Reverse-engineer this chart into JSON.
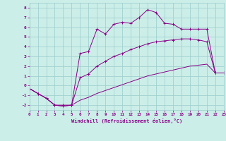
{
  "xlabel": "Windchill (Refroidissement éolien,°C)",
  "bg_color": "#cceee8",
  "grid_color": "#99cccc",
  "line_color": "#880088",
  "xmin": 0,
  "xmax": 23,
  "ymin": -2.5,
  "ymax": 8.5,
  "yticks": [
    -2,
    -1,
    0,
    1,
    2,
    3,
    4,
    5,
    6,
    7,
    8
  ],
  "xticks": [
    0,
    1,
    2,
    3,
    4,
    5,
    6,
    7,
    8,
    9,
    10,
    11,
    12,
    13,
    14,
    15,
    16,
    17,
    18,
    19,
    20,
    21,
    22,
    23
  ],
  "line1_x": [
    0,
    1,
    2,
    3,
    4,
    5,
    6,
    7,
    8,
    9,
    10,
    11,
    12,
    13,
    14,
    15,
    16,
    17,
    18,
    19,
    20,
    21,
    22,
    23
  ],
  "line1_y": [
    -0.3,
    -0.8,
    -1.3,
    -2.0,
    -2.0,
    -2.0,
    3.3,
    3.5,
    5.8,
    5.3,
    6.3,
    6.5,
    6.4,
    7.0,
    7.8,
    7.5,
    6.4,
    6.3,
    5.8,
    5.8,
    5.8,
    5.8,
    1.3,
    1.3
  ],
  "line2_x": [
    0,
    1,
    2,
    3,
    4,
    5,
    6,
    7,
    8,
    9,
    10,
    11,
    12,
    13,
    14,
    15,
    16,
    17,
    18,
    19,
    20,
    21,
    22,
    23
  ],
  "line2_y": [
    -0.3,
    -0.8,
    -1.3,
    -2.0,
    -2.1,
    -2.0,
    0.8,
    1.2,
    2.0,
    2.5,
    3.0,
    3.3,
    3.7,
    4.0,
    4.3,
    4.5,
    4.6,
    4.7,
    4.8,
    4.8,
    4.7,
    4.5,
    1.3,
    1.3
  ],
  "line3_x": [
    0,
    1,
    2,
    3,
    4,
    5,
    6,
    7,
    8,
    9,
    10,
    11,
    12,
    13,
    14,
    15,
    16,
    17,
    18,
    19,
    20,
    21,
    22,
    23
  ],
  "line3_y": [
    -0.3,
    -0.8,
    -1.3,
    -2.0,
    -2.1,
    -2.0,
    -1.5,
    -1.2,
    -0.8,
    -0.5,
    -0.2,
    0.1,
    0.4,
    0.7,
    1.0,
    1.2,
    1.4,
    1.6,
    1.8,
    2.0,
    2.1,
    2.2,
    1.3,
    1.3
  ],
  "marker1_x": [
    5,
    6,
    7,
    8,
    9,
    10,
    11,
    12,
    13,
    14,
    15,
    16,
    19,
    20,
    21,
    22,
    23
  ],
  "marker2_x": [
    5,
    6,
    7,
    8,
    15,
    20,
    21
  ]
}
